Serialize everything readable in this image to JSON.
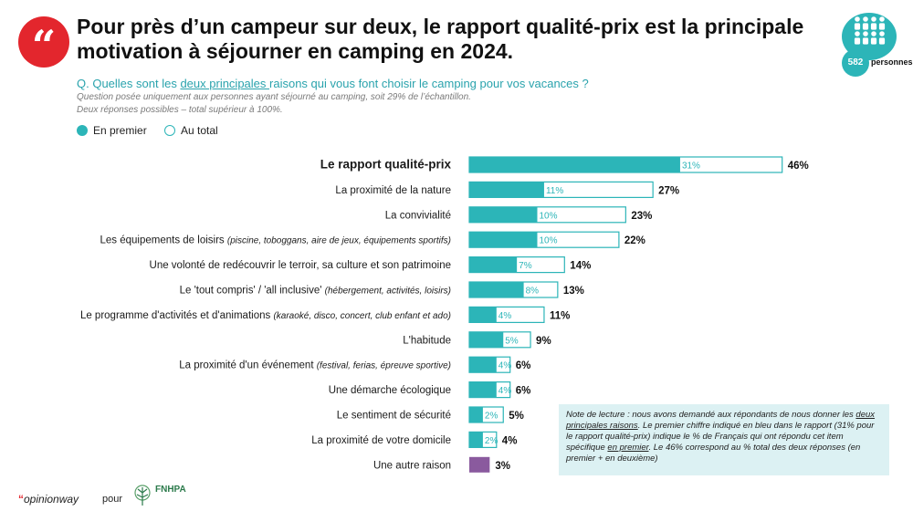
{
  "header": {
    "quote_mark": "“",
    "title": "Pour près d’un campeur sur deux, le rapport qualité-prix est la principale motivation à séjourner en camping en 2024.",
    "sample_count": "582",
    "sample_unit": "personnes"
  },
  "question": {
    "prefix": "Q. Quelles sont les ",
    "underlined": "deux principales ",
    "suffix": "raisons qui vous font choisir le camping pour vos vacances ?",
    "note_1": "Question posée uniquement aux personnes ayant séjourné au camping, soit 29% de l’échantillon.",
    "note_2": "Deux réponses possibles – total supérieur à 100%."
  },
  "legend": {
    "first": "En premier",
    "total": "Au total"
  },
  "colors": {
    "accent": "#2cb5b8",
    "brand_red": "#e3262d",
    "other": "#8a5a9e",
    "note_bg": "#dcf1f3"
  },
  "chart_data": {
    "type": "bar",
    "orientation": "horizontal",
    "series": [
      {
        "name": "En premier",
        "values": [
          31,
          11,
          10,
          10,
          7,
          8,
          4,
          5,
          4,
          4,
          2,
          2,
          null
        ]
      },
      {
        "name": "Au total",
        "values": [
          46,
          27,
          23,
          22,
          14,
          13,
          11,
          9,
          6,
          6,
          5,
          4,
          3
        ]
      }
    ],
    "categories": [
      {
        "main": "Le rapport qualité-prix",
        "detail": "",
        "bold": true
      },
      {
        "main": "La proximité de la nature",
        "detail": ""
      },
      {
        "main": "La convivialité",
        "detail": ""
      },
      {
        "main": "Les équipements de loisirs ",
        "detail": "(piscine, toboggans, aire de jeux, équipements sportifs)"
      },
      {
        "main": "Une volonté de redécouvrir le terroir, sa culture et son patrimoine",
        "detail": ""
      },
      {
        "main": "Le 'tout compris' / 'all inclusive' ",
        "detail": "(hébergement, activités, loisirs)"
      },
      {
        "main": "Le programme d'activités et d'animations ",
        "detail": "(karaoké, disco, concert, club enfant et ado)"
      },
      {
        "main": "L'habitude",
        "detail": ""
      },
      {
        "main": "La proximité d'un événement ",
        "detail": "(festival, ferias, épreuve sportive)"
      },
      {
        "main": "Une démarche écologique",
        "detail": ""
      },
      {
        "main": "Le sentiment de sécurité",
        "detail": ""
      },
      {
        "main": "La proximité de votre domicile",
        "detail": ""
      },
      {
        "main": "Une autre raison",
        "detail": ""
      }
    ],
    "value_suffix": "%",
    "xlim": [
      0,
      50
    ]
  },
  "reading_note": {
    "lead": "Note de lecture : nous avons demandé aux répondants de nous donner les ",
    "underlined_1": "deux principales raisons",
    "middle": ". Le premier chiffre indiqué en bleu dans le rapport (31% pour le rapport qualité-prix) indique le % de Français qui ont répondu cet item spécifique ",
    "underlined_2": "en premier",
    "end": ". Le 46% correspond au % total des deux réponses (en premier + en deuxième)"
  },
  "footer": {
    "brand": "opinionway",
    "pour": "pour",
    "partner": "FNHPA"
  }
}
